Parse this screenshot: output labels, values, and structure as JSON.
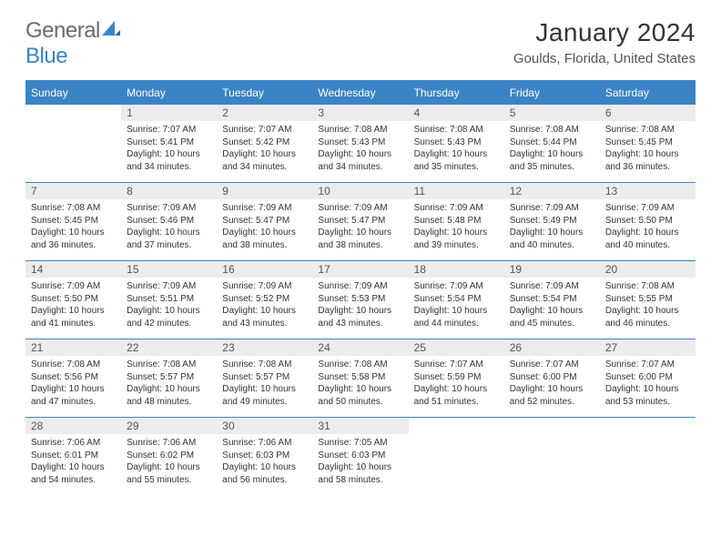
{
  "brand": {
    "name_part1": "General",
    "name_part2": "Blue"
  },
  "title": "January 2024",
  "location": "Goulds, Florida, United States",
  "colors": {
    "accent": "#3a84c5",
    "header_text": "#ffffff",
    "daynum_bg": "#ececec",
    "body_text": "#333333",
    "logo_gray": "#6b6b6b"
  },
  "weekdays": [
    "Sunday",
    "Monday",
    "Tuesday",
    "Wednesday",
    "Thursday",
    "Friday",
    "Saturday"
  ],
  "weeks": [
    [
      null,
      {
        "n": "1",
        "sr": "Sunrise: 7:07 AM",
        "ss": "Sunset: 5:41 PM",
        "dl": "Daylight: 10 hours and 34 minutes."
      },
      {
        "n": "2",
        "sr": "Sunrise: 7:07 AM",
        "ss": "Sunset: 5:42 PM",
        "dl": "Daylight: 10 hours and 34 minutes."
      },
      {
        "n": "3",
        "sr": "Sunrise: 7:08 AM",
        "ss": "Sunset: 5:43 PM",
        "dl": "Daylight: 10 hours and 34 minutes."
      },
      {
        "n": "4",
        "sr": "Sunrise: 7:08 AM",
        "ss": "Sunset: 5:43 PM",
        "dl": "Daylight: 10 hours and 35 minutes."
      },
      {
        "n": "5",
        "sr": "Sunrise: 7:08 AM",
        "ss": "Sunset: 5:44 PM",
        "dl": "Daylight: 10 hours and 35 minutes."
      },
      {
        "n": "6",
        "sr": "Sunrise: 7:08 AM",
        "ss": "Sunset: 5:45 PM",
        "dl": "Daylight: 10 hours and 36 minutes."
      }
    ],
    [
      {
        "n": "7",
        "sr": "Sunrise: 7:08 AM",
        "ss": "Sunset: 5:45 PM",
        "dl": "Daylight: 10 hours and 36 minutes."
      },
      {
        "n": "8",
        "sr": "Sunrise: 7:09 AM",
        "ss": "Sunset: 5:46 PM",
        "dl": "Daylight: 10 hours and 37 minutes."
      },
      {
        "n": "9",
        "sr": "Sunrise: 7:09 AM",
        "ss": "Sunset: 5:47 PM",
        "dl": "Daylight: 10 hours and 38 minutes."
      },
      {
        "n": "10",
        "sr": "Sunrise: 7:09 AM",
        "ss": "Sunset: 5:47 PM",
        "dl": "Daylight: 10 hours and 38 minutes."
      },
      {
        "n": "11",
        "sr": "Sunrise: 7:09 AM",
        "ss": "Sunset: 5:48 PM",
        "dl": "Daylight: 10 hours and 39 minutes."
      },
      {
        "n": "12",
        "sr": "Sunrise: 7:09 AM",
        "ss": "Sunset: 5:49 PM",
        "dl": "Daylight: 10 hours and 40 minutes."
      },
      {
        "n": "13",
        "sr": "Sunrise: 7:09 AM",
        "ss": "Sunset: 5:50 PM",
        "dl": "Daylight: 10 hours and 40 minutes."
      }
    ],
    [
      {
        "n": "14",
        "sr": "Sunrise: 7:09 AM",
        "ss": "Sunset: 5:50 PM",
        "dl": "Daylight: 10 hours and 41 minutes."
      },
      {
        "n": "15",
        "sr": "Sunrise: 7:09 AM",
        "ss": "Sunset: 5:51 PM",
        "dl": "Daylight: 10 hours and 42 minutes."
      },
      {
        "n": "16",
        "sr": "Sunrise: 7:09 AM",
        "ss": "Sunset: 5:52 PM",
        "dl": "Daylight: 10 hours and 43 minutes."
      },
      {
        "n": "17",
        "sr": "Sunrise: 7:09 AM",
        "ss": "Sunset: 5:53 PM",
        "dl": "Daylight: 10 hours and 43 minutes."
      },
      {
        "n": "18",
        "sr": "Sunrise: 7:09 AM",
        "ss": "Sunset: 5:54 PM",
        "dl": "Daylight: 10 hours and 44 minutes."
      },
      {
        "n": "19",
        "sr": "Sunrise: 7:09 AM",
        "ss": "Sunset: 5:54 PM",
        "dl": "Daylight: 10 hours and 45 minutes."
      },
      {
        "n": "20",
        "sr": "Sunrise: 7:08 AM",
        "ss": "Sunset: 5:55 PM",
        "dl": "Daylight: 10 hours and 46 minutes."
      }
    ],
    [
      {
        "n": "21",
        "sr": "Sunrise: 7:08 AM",
        "ss": "Sunset: 5:56 PM",
        "dl": "Daylight: 10 hours and 47 minutes."
      },
      {
        "n": "22",
        "sr": "Sunrise: 7:08 AM",
        "ss": "Sunset: 5:57 PM",
        "dl": "Daylight: 10 hours and 48 minutes."
      },
      {
        "n": "23",
        "sr": "Sunrise: 7:08 AM",
        "ss": "Sunset: 5:57 PM",
        "dl": "Daylight: 10 hours and 49 minutes."
      },
      {
        "n": "24",
        "sr": "Sunrise: 7:08 AM",
        "ss": "Sunset: 5:58 PM",
        "dl": "Daylight: 10 hours and 50 minutes."
      },
      {
        "n": "25",
        "sr": "Sunrise: 7:07 AM",
        "ss": "Sunset: 5:59 PM",
        "dl": "Daylight: 10 hours and 51 minutes."
      },
      {
        "n": "26",
        "sr": "Sunrise: 7:07 AM",
        "ss": "Sunset: 6:00 PM",
        "dl": "Daylight: 10 hours and 52 minutes."
      },
      {
        "n": "27",
        "sr": "Sunrise: 7:07 AM",
        "ss": "Sunset: 6:00 PM",
        "dl": "Daylight: 10 hours and 53 minutes."
      }
    ],
    [
      {
        "n": "28",
        "sr": "Sunrise: 7:06 AM",
        "ss": "Sunset: 6:01 PM",
        "dl": "Daylight: 10 hours and 54 minutes."
      },
      {
        "n": "29",
        "sr": "Sunrise: 7:06 AM",
        "ss": "Sunset: 6:02 PM",
        "dl": "Daylight: 10 hours and 55 minutes."
      },
      {
        "n": "30",
        "sr": "Sunrise: 7:06 AM",
        "ss": "Sunset: 6:03 PM",
        "dl": "Daylight: 10 hours and 56 minutes."
      },
      {
        "n": "31",
        "sr": "Sunrise: 7:05 AM",
        "ss": "Sunset: 6:03 PM",
        "dl": "Daylight: 10 hours and 58 minutes."
      },
      null,
      null,
      null
    ]
  ]
}
